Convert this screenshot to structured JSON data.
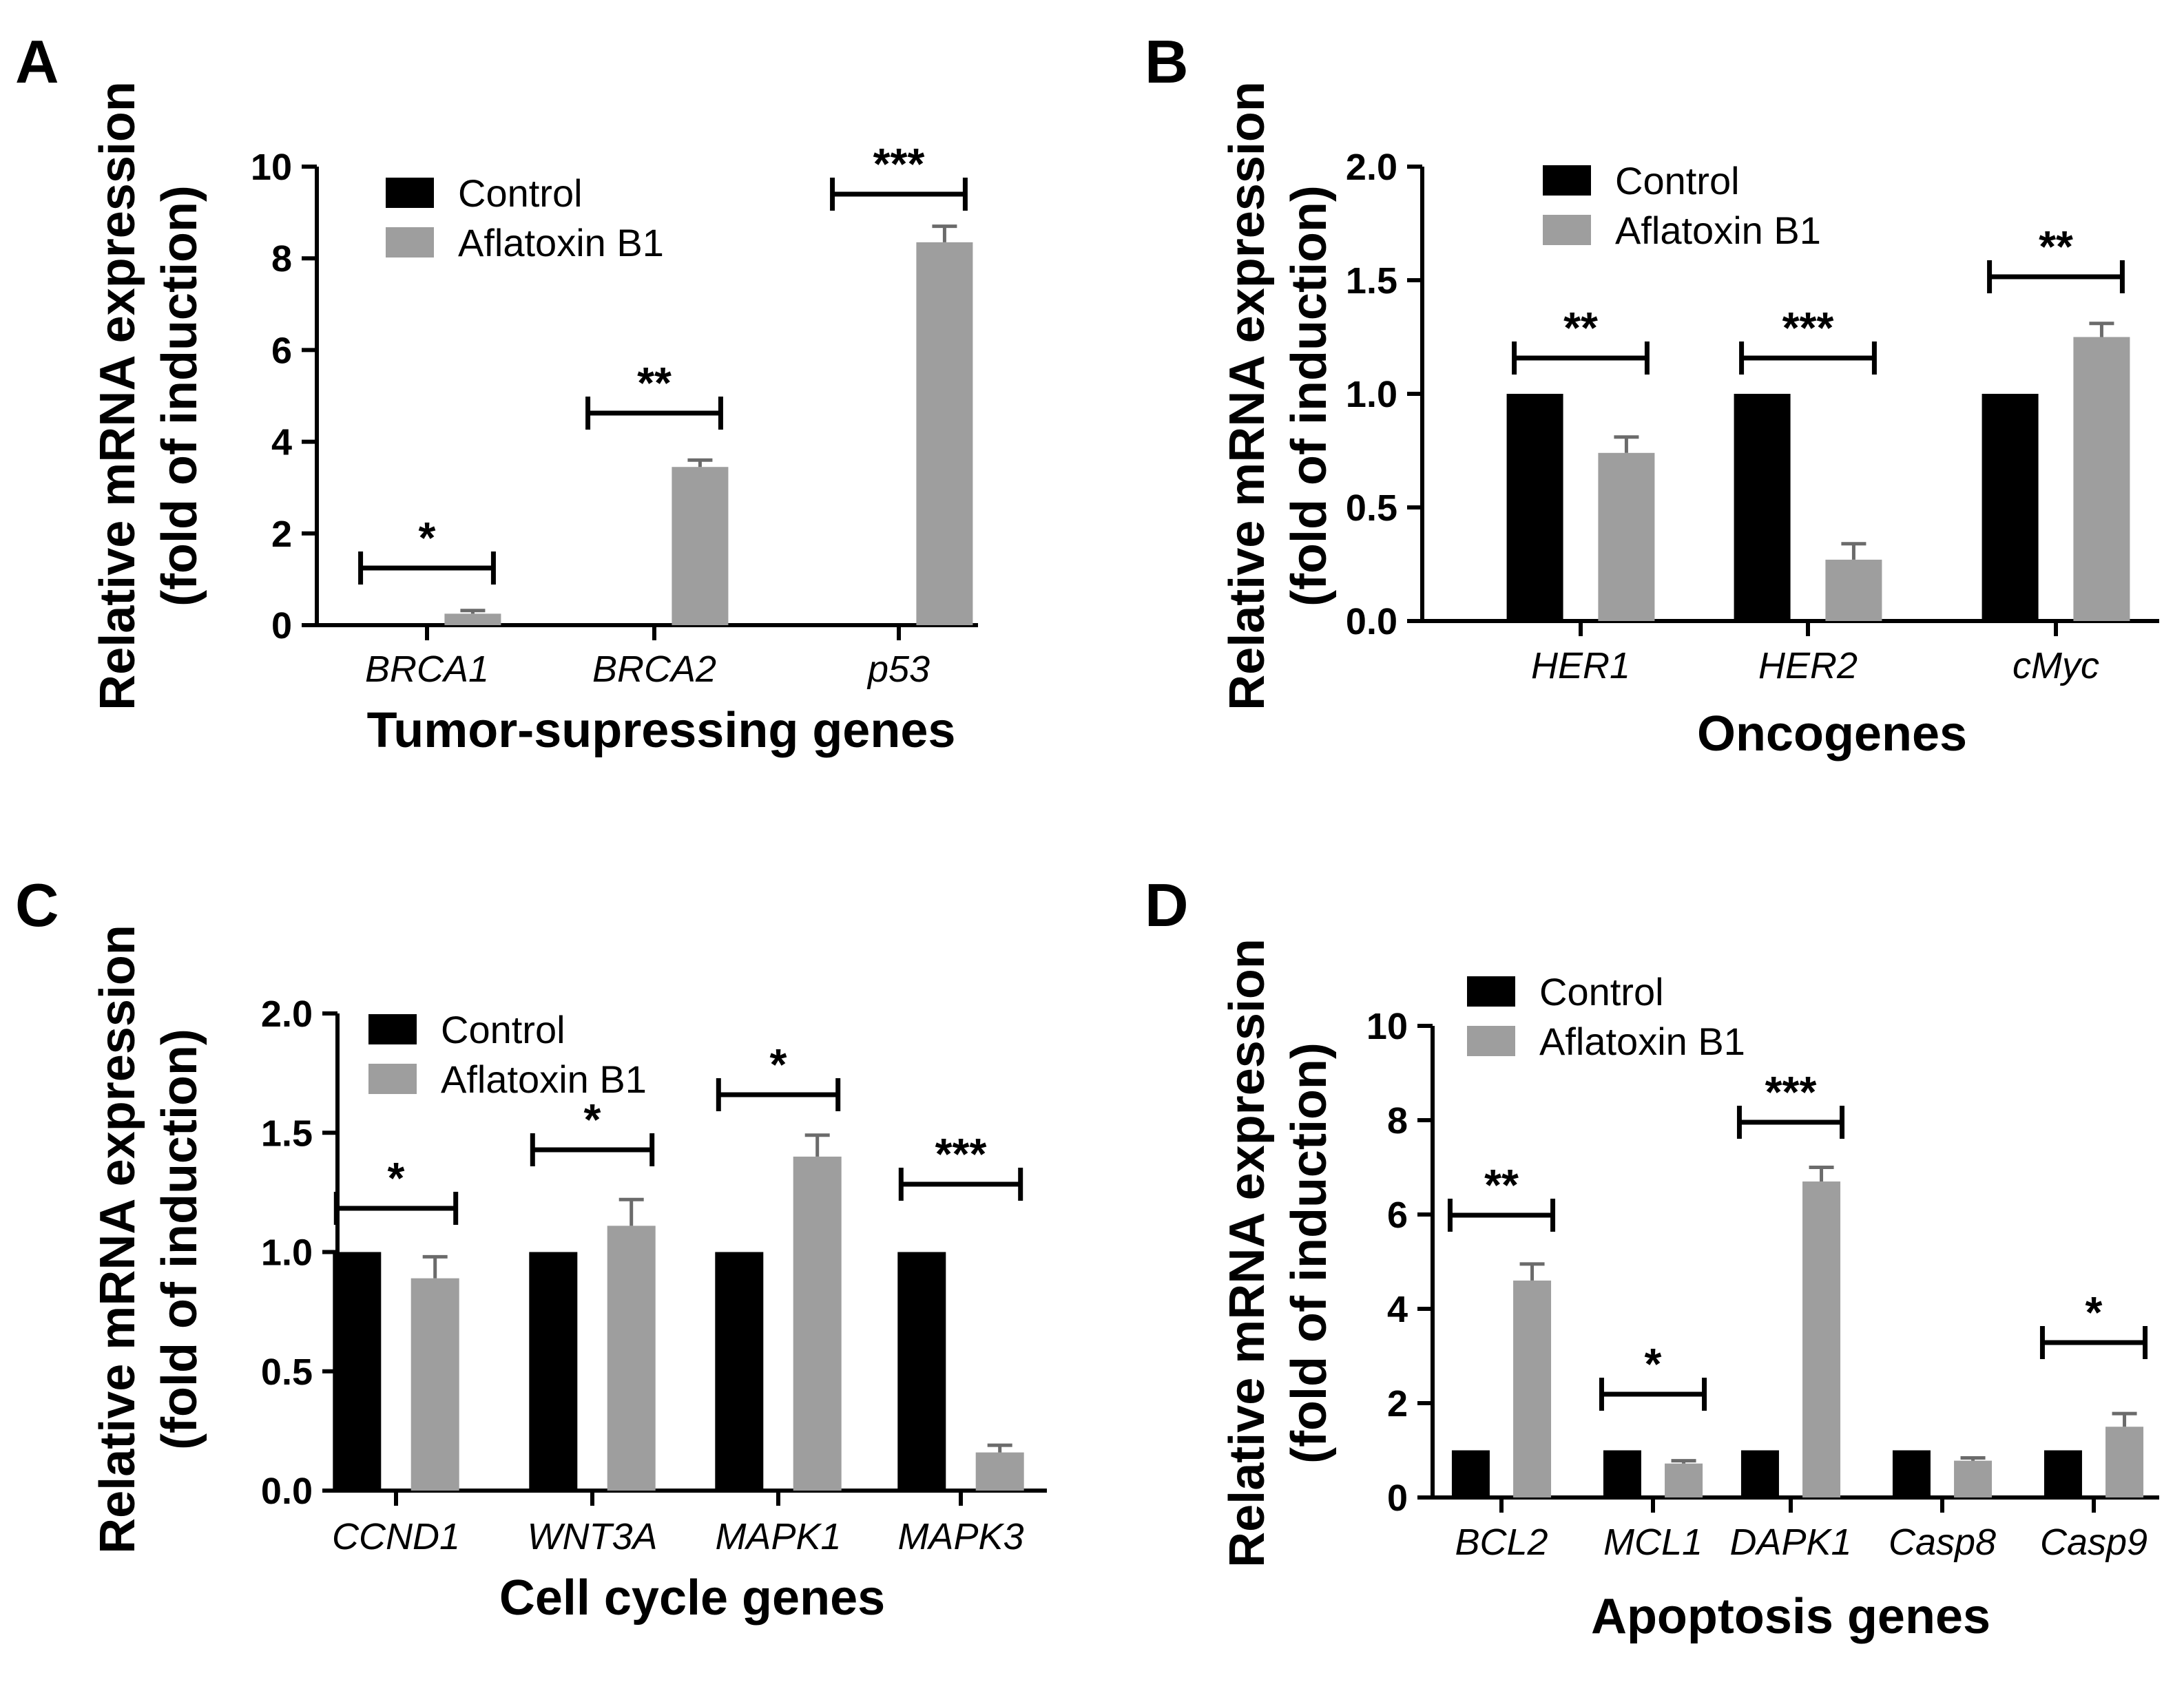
{
  "chart_data": [
    {
      "panel": "A",
      "type": "bar",
      "ylabel_line1": "Relative mRNA expression",
      "ylabel_line2": "(fold of induction)",
      "xlabel": "Tumor-supressing genes",
      "ylim": [
        0,
        10
      ],
      "yticks": [
        "0",
        "2",
        "4",
        "6",
        "8",
        "10"
      ],
      "categories": [
        "BRCA1",
        "BRCA2",
        "p53"
      ],
      "series": [
        {
          "name": "Control",
          "color": "#000000",
          "values": [
            null,
            null,
            null
          ],
          "errors": [
            0,
            0,
            0
          ]
        },
        {
          "name": "Aflatoxin B1",
          "color": "#9e9e9e",
          "values": [
            0.25,
            3.45,
            8.35
          ],
          "errors": [
            0.07,
            0.15,
            0.35
          ]
        }
      ],
      "significance": [
        "*",
        "**",
        "***"
      ],
      "legend": "top-left"
    },
    {
      "panel": "B",
      "type": "bar",
      "ylabel_line1": "Relative mRNA expression",
      "ylabel_line2": "(fold of induction)",
      "xlabel": "Oncogenes",
      "ylim": [
        0,
        2.0
      ],
      "yticks": [
        "0.0",
        "0.5",
        "1.0",
        "1.5",
        "2.0"
      ],
      "categories": [
        "HER1",
        "HER2",
        "cMyc"
      ],
      "series": [
        {
          "name": "Control",
          "color": "#000000",
          "values": [
            1.0,
            1.0,
            1.0
          ],
          "errors": [
            0,
            0,
            0
          ]
        },
        {
          "name": "Aflatoxin B1",
          "color": "#9e9e9e",
          "values": [
            0.74,
            0.27,
            1.25
          ],
          "errors": [
            0.07,
            0.07,
            0.06
          ]
        }
      ],
      "significance": [
        "**",
        "***",
        "**"
      ],
      "legend": "top-left"
    },
    {
      "panel": "C",
      "type": "bar",
      "ylabel_line1": "Relative mRNA expression",
      "ylabel_line2": "(fold of induction)",
      "xlabel": "Cell cycle genes",
      "ylim": [
        0,
        2.0
      ],
      "yticks": [
        "0.0",
        "0.5",
        "1.0",
        "1.5",
        "2.0"
      ],
      "categories": [
        "CCND1",
        "WNT3A",
        "MAPK1",
        "MAPK3"
      ],
      "series": [
        {
          "name": "Control",
          "color": "#000000",
          "values": [
            1.0,
            1.0,
            1.0,
            1.0
          ],
          "errors": [
            0,
            0,
            0,
            0
          ]
        },
        {
          "name": "Aflatoxin B1",
          "color": "#9e9e9e",
          "values": [
            0.89,
            1.11,
            1.4,
            0.16
          ],
          "errors": [
            0.09,
            0.11,
            0.09,
            0.03
          ]
        }
      ],
      "significance": [
        "*",
        "*",
        "*",
        "***"
      ],
      "legend": "top-left"
    },
    {
      "panel": "D",
      "type": "bar",
      "ylabel_line1": "Relative mRNA expression",
      "ylabel_line2": "(fold of induction)",
      "xlabel": "Apoptosis genes",
      "ylim": [
        0,
        10
      ],
      "yticks": [
        "0",
        "2",
        "4",
        "6",
        "8",
        "10"
      ],
      "categories": [
        "BCL2",
        "MCL1",
        "DAPK1",
        "Casp8",
        "Casp9"
      ],
      "series": [
        {
          "name": "Control",
          "color": "#000000",
          "values": [
            1.0,
            1.0,
            1.0,
            1.0,
            1.0
          ],
          "errors": [
            0,
            0,
            0,
            0,
            0
          ]
        },
        {
          "name": "Aflatoxin B1",
          "color": "#9e9e9e",
          "values": [
            4.6,
            0.72,
            6.7,
            0.78,
            1.5
          ],
          "errors": [
            0.35,
            0.06,
            0.3,
            0.06,
            0.28
          ]
        }
      ],
      "significance": [
        "**",
        "*",
        "***",
        null,
        "*"
      ],
      "legend": "top-left"
    }
  ]
}
